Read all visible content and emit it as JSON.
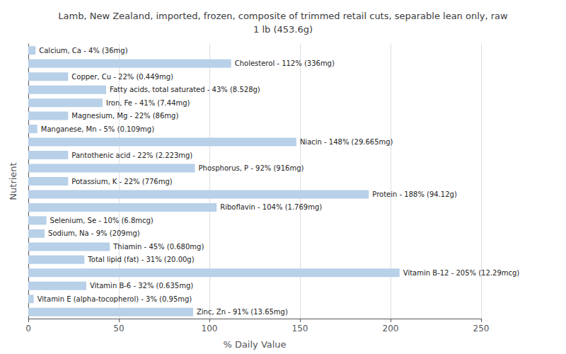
{
  "chart_data": {
    "type": "bar",
    "orientation": "horizontal",
    "title": "Lamb, New Zealand, imported, frozen, composite of trimmed retail cuts, separable lean only, raw\n1 lb (453.6g)",
    "xlabel": "% Daily Value",
    "ylabel": "Nutrient",
    "categories": [
      "Calcium, Ca - 4% (36mg)",
      "Cholesterol - 112% (336mg)",
      "Copper, Cu - 22% (0.449mg)",
      "Fatty acids, total saturated - 43% (8.528g)",
      "Iron, Fe - 41% (7.44mg)",
      "Magnesium, Mg - 22% (86mg)",
      "Manganese, Mn - 5% (0.109mg)",
      "Niacin - 148% (29.665mg)",
      "Pantothenic acid - 22% (2.223mg)",
      "Phosphorus, P - 92% (916mg)",
      "Potassium, K - 22% (776mg)",
      "Protein - 188% (94.12g)",
      "Riboflavin - 104% (1.769mg)",
      "Selenium, Se - 10% (6.8mcg)",
      "Sodium, Na - 9% (209mg)",
      "Thiamin - 45% (0.680mg)",
      "Total lipid (fat) - 31% (20.00g)",
      "Vitamin B-12 - 205% (12.29mcg)",
      "Vitamin B-6 - 32% (0.635mg)",
      "Vitamin E (alpha-tocopherol) - 3% (0.95mg)",
      "Zinc, Zn - 91% (13.65mg)"
    ],
    "values": [
      4,
      112,
      22,
      43,
      41,
      22,
      5,
      148,
      22,
      92,
      22,
      188,
      104,
      10,
      9,
      45,
      31,
      205,
      32,
      3,
      91
    ],
    "color": "#b8d0e8",
    "xlim": [
      0,
      250
    ],
    "xticks": [
      0,
      50,
      100,
      150,
      200,
      250
    ],
    "grid": true,
    "tick_labels": "x"
  }
}
